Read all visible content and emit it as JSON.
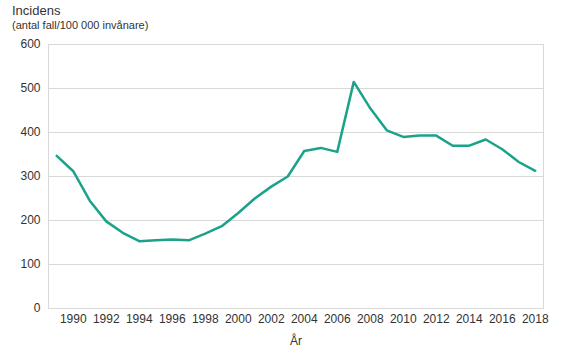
{
  "chart_data": {
    "type": "line",
    "title": "Incidens",
    "subtitle": "(antal fall/100 000 invånare)",
    "x_label": "År",
    "x": [
      1989,
      1990,
      1991,
      1992,
      1993,
      1994,
      1995,
      1996,
      1997,
      1998,
      1999,
      2000,
      2001,
      2002,
      2003,
      2004,
      2005,
      2006,
      2007,
      2008,
      2009,
      2010,
      2011,
      2012,
      2013,
      2014,
      2015,
      2016,
      2017,
      2018
    ],
    "values": [
      347,
      312,
      245,
      198,
      172,
      153,
      155,
      157,
      155,
      170,
      187,
      217,
      250,
      277,
      300,
      358,
      365,
      356,
      515,
      455,
      405,
      390,
      393,
      393,
      370,
      370,
      384,
      362,
      333,
      313
    ],
    "color": "#1aa389",
    "xlim": [
      1988.5,
      2018.5
    ],
    "xticks": [
      1990,
      1992,
      1994,
      1996,
      1998,
      2000,
      2002,
      2004,
      2006,
      2008,
      2010,
      2012,
      2014,
      2016,
      2018
    ],
    "ylim": [
      0,
      600
    ],
    "yticks": [
      0,
      100,
      200,
      300,
      400,
      500,
      600
    ],
    "grid": true
  }
}
